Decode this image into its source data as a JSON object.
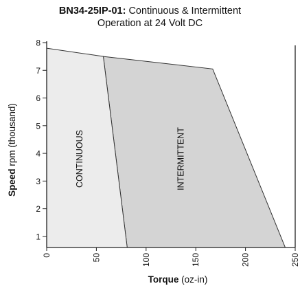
{
  "chart_data": {
    "type": "area",
    "title_bold": "BN34-25IP-01:",
    "title_rest": "Continuous & Intermittent",
    "subtitle": "Operation at 24 Volt DC",
    "xlabel_bold": "Torque",
    "xlabel_rest": "(oz-in)",
    "ylabel_bold": "Speed",
    "ylabel_rest": "rpm (thousand)",
    "xlim": [
      0,
      250
    ],
    "ylim": [
      0.6,
      8.05
    ],
    "x_ticks": [
      "0",
      "50",
      "100",
      "150",
      "200",
      "250"
    ],
    "y_ticks": [
      "1",
      "2",
      "3",
      "4",
      "5",
      "6",
      "7",
      "8"
    ],
    "regions": [
      {
        "name": "INTERMITTENT",
        "color": "#d4d4d4",
        "points": [
          [
            57,
            7.5
          ],
          [
            167,
            7.05
          ],
          [
            240,
            0.6
          ],
          [
            81,
            0.6
          ]
        ]
      },
      {
        "name": "CONTINUOUS",
        "color": "#ececec",
        "points": [
          [
            0,
            7.8
          ],
          [
            57,
            7.5
          ],
          [
            81,
            0.6
          ],
          [
            0,
            0.6
          ]
        ]
      }
    ],
    "grid": false,
    "legend": "none"
  }
}
